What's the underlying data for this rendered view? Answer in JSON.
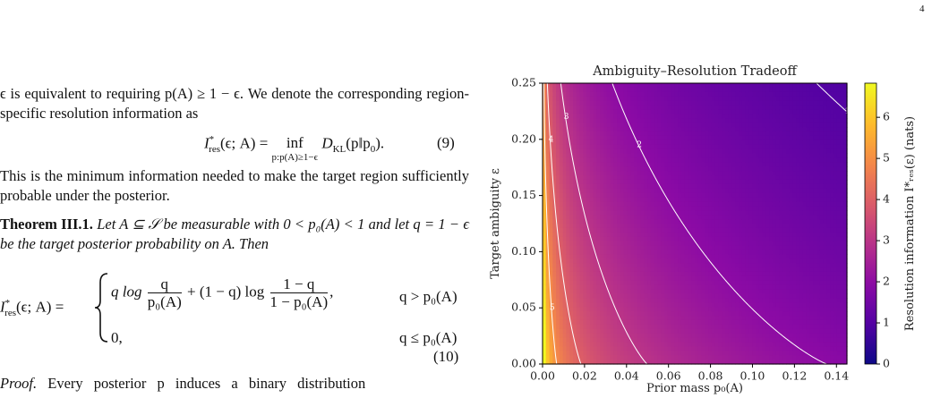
{
  "page_number": "4",
  "paragraph_1": "ϵ is equivalent to requiring p(A) ≥ 1 − ϵ. We denote the corresponding region-specific resolution information as",
  "equation_9": {
    "lhs": "I",
    "lhs_sup": "*",
    "lhs_sub": "res",
    "lhs_args": "(ϵ; A) =",
    "operator": "inf",
    "operator_sub": "p:p(A)≥1−ϵ",
    "body": "D",
    "body_sub": "KL",
    "body_args": "(p‖p",
    "body_args_sub": "0",
    "end": ").",
    "tag": "(9)"
  },
  "paragraph_2": "This is the minimum information needed to make the target region sufficiently probable under the posterior.",
  "theorem": {
    "label": "Theorem III.1.",
    "text": "Let A ⊆ 𝒮 be measurable with 0 < p₀(A) < 1 and let q = 1 − ϵ be the target posterior probability on A. Then"
  },
  "equation_10": {
    "lhs": "I",
    "lhs_sup": "*",
    "lhs_sub": "res",
    "lhs_args": "(ϵ; A) =",
    "case_1": {
      "term_1": "q log",
      "frac_1_num": "q",
      "frac_1_den": "p₀(A)",
      "term_2": "+ (1 − q) log",
      "frac_2_num": "1 − q",
      "frac_2_den": "1 − p₀(A)",
      "end": ",",
      "condition": "q > p₀(A)"
    },
    "case_2": {
      "value": "0,",
      "condition": "q ≤ p₀(A)"
    },
    "tag": "(10)"
  },
  "proof": {
    "label": "Proof.",
    "text": "Every posterior p induces a binary distribution"
  },
  "chart_data": {
    "type": "contour",
    "title": "Ambiguity–Resolution Tradeoff",
    "xlabel": "Prior mass p₀(A)",
    "ylabel": "Target ambiguity ε",
    "xlim": [
      0,
      0.145
    ],
    "ylim": [
      0,
      0.25
    ],
    "xticks": [
      {
        "value": 0,
        "label": "0.00"
      },
      {
        "value": 0.02,
        "label": "0.02"
      },
      {
        "value": 0.04,
        "label": "0.04"
      },
      {
        "value": 0.06,
        "label": "0.06"
      },
      {
        "value": 0.08,
        "label": "0.08"
      },
      {
        "value": 0.1,
        "label": "0.10"
      },
      {
        "value": 0.12,
        "label": "0.12"
      },
      {
        "value": 0.14,
        "label": "0.14"
      }
    ],
    "yticks": [
      {
        "value": 0,
        "label": "0.00"
      },
      {
        "value": 0.05,
        "label": "0.05"
      },
      {
        "value": 0.1,
        "label": "0.10"
      },
      {
        "value": 0.15,
        "label": "0.15"
      },
      {
        "value": 0.2,
        "label": "0.20"
      },
      {
        "value": 0.25,
        "label": "0.25"
      }
    ],
    "colormap": "plasma",
    "clim": [
      0,
      6.83
    ],
    "cticks": [
      0,
      1,
      2,
      3,
      4,
      5,
      6
    ],
    "colorbar_label": "Resolution information I*ᵣₑₛ(ε) (nats)",
    "contour_levels": [
      1,
      2,
      3,
      4,
      5
    ],
    "contour_color": "#ffffff"
  }
}
